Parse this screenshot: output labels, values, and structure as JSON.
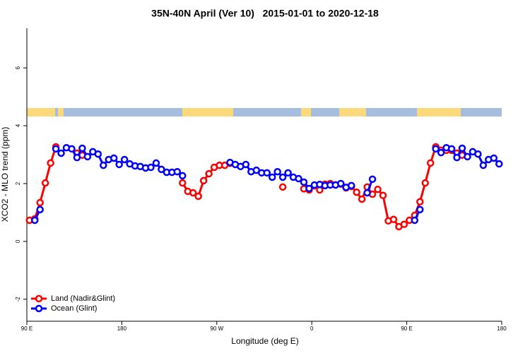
{
  "chart_data": {
    "type": "line",
    "title": "35N-40N April (Ver 10)   2015-01-01 to 2020-12-18",
    "xlabel": "Longitude (deg E)",
    "ylabel": "XCO2 - MLO trend (ppm)",
    "xlim": [
      90,
      540
    ],
    "ylim": [
      -2.76,
      7.37
    ],
    "xticks": [
      {
        "value": 90,
        "label": "90 E"
      },
      180,
      {
        "value": 270,
        "label": "90 W"
      },
      {
        "value": 360,
        "label": "0"
      },
      {
        "value": 450,
        "label": "90 E"
      },
      {
        "value": 540,
        "label": "180"
      }
    ],
    "yticks": [
      -2,
      0,
      2,
      4,
      6
    ],
    "legend": "bottom-left",
    "x": [
      92.5,
      97.5,
      102.5,
      107.5,
      112.5,
      117.5,
      122.5,
      127.5,
      132.5,
      137.5,
      142.5,
      147.5,
      152.5,
      157.5,
      162.5,
      167.5,
      172.5,
      177.5,
      182.5,
      187.5,
      192.5,
      197.5,
      202.5,
      207.5,
      212.5,
      217.5,
      222.5,
      227.5,
      232.5,
      237.5,
      242.5,
      247.5,
      252.5,
      257.5,
      262.5,
      267.5,
      272.5,
      277.5,
      282.5,
      287.5,
      292.5,
      297.5,
      302.5,
      307.5,
      312.5,
      317.5,
      322.5,
      327.5,
      332.5,
      337.5,
      342.5,
      347.5,
      352.5,
      357.5,
      362.5,
      367.5,
      372.5,
      377.5,
      382.5,
      387.5,
      392.5,
      397.5,
      402.5,
      407.5,
      412.5,
      417.5,
      422.5,
      427.5,
      432.5,
      437.5,
      442.5,
      447.5,
      452.5,
      457.5,
      462.5,
      467.5,
      472.5,
      477.5,
      482.5,
      487.5,
      492.5,
      497.5,
      502.5,
      507.5,
      512.5,
      517.5,
      522.5,
      527.5,
      532.5,
      537.5
    ],
    "series": [
      {
        "name": "Land (Nadir&Glint)",
        "color": "#ff0000",
        "values": [
          0.73,
          0.78,
          1.34,
          2.02,
          2.71,
          3.27,
          null,
          null,
          null,
          3.05,
          2.98,
          null,
          null,
          null,
          null,
          null,
          null,
          null,
          null,
          null,
          null,
          null,
          null,
          null,
          null,
          null,
          null,
          null,
          null,
          2.02,
          1.73,
          1.68,
          1.56,
          2.1,
          2.34,
          2.56,
          2.63,
          2.63,
          2.7,
          null,
          null,
          null,
          null,
          null,
          null,
          null,
          null,
          null,
          1.88,
          null,
          null,
          null,
          1.82,
          1.78,
          1.92,
          1.78,
          1.98,
          2.0,
          1.95,
          1.98,
          1.85,
          1.9,
          1.7,
          1.46,
          1.88,
          1.63,
          1.8,
          1.59,
          0.71,
          0.76,
          0.51,
          0.59,
          0.73,
          0.9,
          1.37,
          2.02,
          2.71,
          3.27,
          3.15,
          3.15,
          3.15,
          3.05,
          2.98,
          null,
          null,
          null,
          null,
          null,
          null,
          null
        ]
      },
      {
        "name": "Ocean (Glint)",
        "color": "#0000ff",
        "values": [
          null,
          0.73,
          1.1,
          null,
          null,
          3.2,
          3.05,
          3.24,
          3.2,
          2.9,
          3.22,
          2.93,
          3.1,
          3.02,
          2.63,
          2.83,
          2.88,
          2.66,
          2.83,
          2.68,
          2.61,
          2.59,
          2.54,
          2.56,
          2.71,
          2.49,
          2.39,
          2.39,
          2.41,
          2.27,
          null,
          null,
          null,
          null,
          null,
          null,
          null,
          null,
          2.73,
          2.66,
          2.59,
          2.66,
          2.41,
          2.46,
          2.37,
          2.37,
          2.22,
          2.41,
          2.22,
          2.37,
          2.22,
          2.17,
          2.05,
          1.83,
          1.95,
          1.97,
          1.93,
          1.95,
          1.95,
          2.0,
          1.87,
          1.93,
          null,
          null,
          1.68,
          2.15,
          null,
          null,
          null,
          null,
          null,
          null,
          null,
          0.73,
          1.1,
          null,
          null,
          3.2,
          3.07,
          3.24,
          3.2,
          2.9,
          3.22,
          2.93,
          3.1,
          3.02,
          2.63,
          2.83,
          2.88,
          2.68
        ]
      }
    ]
  }
}
